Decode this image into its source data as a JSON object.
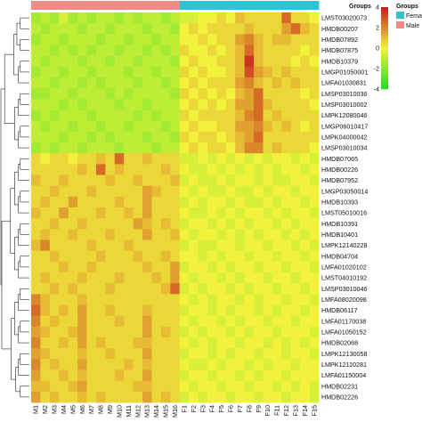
{
  "chart_data": {
    "type": "heatmap",
    "group_annotation": {
      "title": "Groups",
      "legend_title": "Groups",
      "entries": [
        {
          "label": "Femal",
          "color": "#2ec4cf"
        },
        {
          "label": "Male",
          "color": "#f08b86"
        }
      ]
    },
    "color_scale": {
      "ticks": [
        4,
        2,
        0,
        -2,
        -4
      ],
      "range": [
        -4,
        4
      ],
      "colors": {
        "low": "#22dd22",
        "mid": "#f2f23c",
        "high": "#c41a1a"
      }
    },
    "columns": [
      "M1",
      "M2",
      "M3",
      "M4",
      "M5",
      "M6",
      "M7",
      "M8",
      "M9",
      "M10",
      "M11",
      "M12",
      "M13",
      "M14",
      "M15",
      "M16",
      "F1",
      "F2",
      "F3",
      "F4",
      "F5",
      "F6",
      "F7",
      "F8",
      "F9",
      "F10",
      "F11",
      "F12",
      "F13",
      "F14",
      "F15"
    ],
    "column_groups": [
      "Male",
      "Male",
      "Male",
      "Male",
      "Male",
      "Male",
      "Male",
      "Male",
      "Male",
      "Male",
      "Male",
      "Male",
      "Male",
      "Male",
      "Male",
      "Male",
      "Femal",
      "Femal",
      "Femal",
      "Femal",
      "Femal",
      "Femal",
      "Femal",
      "Femal",
      "Femal",
      "Femal",
      "Femal",
      "Femal",
      "Femal",
      "Femal",
      "Femal"
    ],
    "rows": [
      "LMST03020073",
      "HMDB00207",
      "HMDB07892",
      "HMDB07875",
      "HMDB10379",
      "LMGP01050001",
      "LMFA01030831",
      "LMSP03010036",
      "LMSP03010002",
      "LMPK12080046",
      "LMGP06010417",
      "LMPK04000042",
      "LMSP03010034",
      "HMDB07065",
      "HMDB00226",
      "HMDB07952",
      "LMGP03050014",
      "HMDB10393",
      "LMST05010016",
      "HMDB10391",
      "HMDB10401",
      "LMPK12140228",
      "HMDB04704",
      "LMFA01020102",
      "LMST04010192",
      "LMSP03010046",
      "LMFA08020098",
      "HMDB06117",
      "LMFA01170038",
      "LMFA01050152",
      "HMDB02068",
      "LMPK12130058",
      "LMPK12110281",
      "LMFA01150004",
      "HMDB02231",
      "HMDB02226"
    ],
    "values": [
      [
        -1.5,
        -1.0,
        -1.5,
        -0.5,
        -1.5,
        -1.0,
        -1.5,
        -1.0,
        -1.0,
        -1.5,
        -1.0,
        -1.5,
        -1.0,
        -1.0,
        -1.5,
        -1.0,
        -0.5,
        -0.5,
        0.0,
        0.0,
        0.5,
        0.0,
        1.0,
        0.5,
        0.5,
        0.5,
        0.5,
        2.5,
        0.5,
        0.5,
        0.0
      ],
      [
        -1.0,
        -1.5,
        -1.0,
        -1.0,
        -1.0,
        -1.5,
        -1.0,
        -1.0,
        -1.5,
        -1.0,
        -1.0,
        -1.0,
        -1.5,
        -1.0,
        -1.0,
        -1.5,
        0.0,
        0.5,
        0.0,
        0.5,
        0.5,
        0.5,
        0.5,
        1.0,
        0.5,
        0.5,
        0.5,
        1.5,
        2.5,
        1.0,
        0.5
      ],
      [
        -1.5,
        -1.0,
        -1.0,
        -1.5,
        -1.0,
        -1.0,
        -1.0,
        -1.5,
        -1.0,
        -1.0,
        -1.5,
        -1.0,
        -1.0,
        -1.5,
        -1.0,
        -1.0,
        0.0,
        0.0,
        0.5,
        0.0,
        0.5,
        0.5,
        1.5,
        2.0,
        1.0,
        0.5,
        1.0,
        1.0,
        0.5,
        0.5,
        0.5
      ],
      [
        -1.0,
        -1.0,
        -1.5,
        -1.0,
        -1.5,
        -1.0,
        -1.5,
        -1.0,
        -1.0,
        -1.5,
        -1.0,
        -1.0,
        -1.5,
        -1.0,
        -1.5,
        -1.0,
        0.5,
        0.0,
        0.0,
        0.5,
        0.0,
        0.5,
        1.0,
        2.5,
        1.0,
        0.5,
        0.5,
        0.5,
        0.5,
        0.0,
        0.5
      ],
      [
        -1.0,
        -1.5,
        -1.0,
        -1.0,
        -1.0,
        -1.5,
        -1.0,
        -1.0,
        -1.5,
        -1.0,
        -1.0,
        -1.5,
        -1.0,
        -1.0,
        -1.0,
        -1.5,
        0.0,
        0.5,
        0.0,
        0.0,
        0.5,
        0.5,
        1.0,
        3.5,
        1.0,
        0.5,
        0.5,
        0.5,
        0.0,
        0.5,
        0.0
      ],
      [
        -1.5,
        -1.0,
        -1.0,
        -1.5,
        -1.0,
        -1.0,
        -1.5,
        -1.0,
        -1.0,
        -1.0,
        -1.5,
        -1.0,
        -1.0,
        -1.5,
        -1.0,
        -1.0,
        0.5,
        0.0,
        0.5,
        0.0,
        0.0,
        0.5,
        1.0,
        3.0,
        1.5,
        1.0,
        0.5,
        1.0,
        0.5,
        0.5,
        0.5
      ],
      [
        -1.0,
        -1.0,
        -1.5,
        -1.0,
        -1.0,
        -1.5,
        -1.0,
        -1.5,
        -1.0,
        -1.0,
        -1.0,
        -1.5,
        -1.0,
        -1.0,
        -1.5,
        -1.0,
        0.0,
        0.5,
        0.0,
        0.5,
        0.5,
        0.5,
        1.5,
        2.0,
        1.0,
        0.5,
        1.0,
        0.5,
        1.0,
        0.5,
        0.5
      ],
      [
        -1.5,
        -1.5,
        -1.0,
        -1.0,
        -1.5,
        -1.0,
        -1.0,
        -1.0,
        -1.5,
        -1.0,
        -1.5,
        -1.0,
        -1.0,
        -1.0,
        -1.0,
        -1.5,
        0.5,
        0.0,
        0.5,
        0.0,
        0.5,
        0.0,
        1.0,
        1.5,
        2.5,
        0.5,
        0.5,
        0.5,
        0.5,
        0.0,
        0.5
      ],
      [
        -1.0,
        -1.0,
        -1.0,
        -1.5,
        -1.0,
        -1.5,
        -1.0,
        -1.0,
        -1.0,
        -1.5,
        -1.0,
        -1.0,
        -1.5,
        -1.0,
        -1.0,
        -1.0,
        0.0,
        0.5,
        0.0,
        0.5,
        0.0,
        0.5,
        1.5,
        1.5,
        2.5,
        1.0,
        0.5,
        0.5,
        0.5,
        0.5,
        0.0
      ],
      [
        -1.5,
        -1.0,
        -1.5,
        -1.0,
        -1.0,
        -1.0,
        -1.5,
        -1.0,
        -1.0,
        -1.0,
        -1.0,
        -1.5,
        -1.0,
        -1.5,
        -1.0,
        -1.0,
        0.5,
        0.0,
        0.5,
        0.5,
        0.5,
        0.5,
        1.0,
        2.0,
        2.5,
        0.5,
        1.0,
        0.5,
        0.5,
        0.5,
        0.5
      ],
      [
        -1.0,
        -1.5,
        -1.0,
        -1.0,
        -1.5,
        -1.0,
        -1.0,
        -1.5,
        -1.0,
        -1.0,
        -1.5,
        -1.0,
        -1.0,
        -1.0,
        -1.5,
        -1.0,
        0.0,
        0.5,
        0.0,
        0.0,
        0.5,
        0.5,
        1.5,
        1.5,
        2.0,
        1.0,
        0.5,
        1.0,
        0.5,
        0.0,
        0.5
      ],
      [
        -1.0,
        -1.0,
        -1.0,
        -1.5,
        -1.0,
        -1.0,
        -1.5,
        -1.0,
        -1.5,
        -1.0,
        -1.0,
        -1.0,
        -1.5,
        -1.0,
        -1.0,
        -1.5,
        0.5,
        0.0,
        0.5,
        0.5,
        0.0,
        0.5,
        1.0,
        1.5,
        2.5,
        0.5,
        0.5,
        0.5,
        0.5,
        0.5,
        0.5
      ],
      [
        -1.5,
        -1.0,
        -1.5,
        -1.0,
        -1.0,
        -1.5,
        -1.0,
        -1.0,
        -1.0,
        -1.5,
        -1.0,
        -1.0,
        -1.0,
        -1.5,
        -1.0,
        -1.0,
        0.0,
        0.5,
        0.0,
        0.5,
        0.5,
        0.0,
        1.0,
        2.0,
        2.0,
        0.5,
        1.0,
        0.5,
        0.5,
        0.5,
        0.0
      ],
      [
        0.5,
        0.0,
        0.5,
        0.5,
        0.0,
        0.5,
        0.5,
        1.0,
        0.5,
        2.5,
        0.5,
        0.5,
        1.0,
        0.5,
        0.5,
        0.5,
        -0.5,
        -0.5,
        0.0,
        -0.5,
        0.0,
        -0.5,
        0.0,
        -0.5,
        0.0,
        -0.5,
        0.0,
        0.0,
        -0.5,
        0.0,
        -0.5
      ],
      [
        0.5,
        0.5,
        0.5,
        0.5,
        0.5,
        1.0,
        0.5,
        2.5,
        0.5,
        1.0,
        0.5,
        0.5,
        0.5,
        0.5,
        1.0,
        0.5,
        0.0,
        -0.5,
        -0.5,
        0.0,
        -0.5,
        0.0,
        -0.5,
        0.0,
        -0.5,
        0.0,
        -0.5,
        0.0,
        0.0,
        -0.5,
        0.0
      ],
      [
        1.0,
        0.5,
        0.5,
        1.0,
        0.5,
        0.5,
        0.5,
        0.5,
        1.0,
        0.5,
        0.5,
        1.0,
        0.5,
        0.5,
        0.5,
        1.0,
        -0.5,
        0.0,
        -0.5,
        -0.5,
        0.0,
        -0.5,
        0.0,
        0.0,
        -0.5,
        0.0,
        -0.5,
        -0.5,
        0.0,
        0.0,
        -0.5
      ],
      [
        0.5,
        0.5,
        1.0,
        0.5,
        0.5,
        0.5,
        1.0,
        0.5,
        0.5,
        0.5,
        0.5,
        0.5,
        1.5,
        1.0,
        0.5,
        0.5,
        0.0,
        -0.5,
        0.0,
        -0.5,
        -0.5,
        0.0,
        -0.5,
        -0.5,
        0.0,
        -0.5,
        0.0,
        0.0,
        -0.5,
        0.0,
        0.0
      ],
      [
        0.5,
        1.0,
        0.5,
        0.5,
        1.5,
        0.5,
        0.5,
        0.5,
        0.5,
        1.0,
        0.5,
        0.5,
        1.5,
        0.5,
        0.5,
        0.5,
        -0.5,
        0.0,
        -0.5,
        0.0,
        0.0,
        -0.5,
        0.0,
        -0.5,
        -0.5,
        0.0,
        -0.5,
        0.0,
        0.0,
        -0.5,
        0.0
      ],
      [
        1.0,
        0.5,
        0.5,
        1.5,
        0.5,
        0.5,
        0.5,
        1.0,
        0.5,
        0.5,
        1.0,
        0.5,
        1.5,
        0.5,
        0.5,
        0.5,
        0.0,
        -0.5,
        -0.5,
        0.0,
        -0.5,
        0.0,
        -0.5,
        0.0,
        0.0,
        -0.5,
        0.0,
        -0.5,
        0.0,
        0.0,
        -0.5
      ],
      [
        0.5,
        0.5,
        1.0,
        0.5,
        0.5,
        1.0,
        0.5,
        0.5,
        0.5,
        0.5,
        0.5,
        1.5,
        1.0,
        0.5,
        1.0,
        0.5,
        -0.5,
        0.0,
        0.0,
        -0.5,
        0.0,
        -0.5,
        0.0,
        -0.5,
        0.0,
        0.0,
        -0.5,
        0.0,
        -0.5,
        0.0,
        0.0
      ],
      [
        0.5,
        1.0,
        0.5,
        0.5,
        1.0,
        0.5,
        0.5,
        0.5,
        1.0,
        0.5,
        0.5,
        0.5,
        1.5,
        0.5,
        0.5,
        1.0,
        0.0,
        -0.5,
        0.0,
        0.0,
        -0.5,
        0.0,
        -0.5,
        0.0,
        -0.5,
        0.0,
        0.0,
        -0.5,
        0.0,
        -0.5,
        0.0
      ],
      [
        1.0,
        2.0,
        0.5,
        0.5,
        0.5,
        0.5,
        1.0,
        0.5,
        0.5,
        0.5,
        1.0,
        0.5,
        0.5,
        0.5,
        0.5,
        0.5,
        -0.5,
        0.0,
        -0.5,
        -0.5,
        0.0,
        0.0,
        -0.5,
        0.0,
        0.0,
        -0.5,
        0.0,
        0.0,
        -0.5,
        0.0,
        -0.5
      ],
      [
        0.5,
        0.5,
        1.0,
        0.5,
        0.5,
        0.5,
        0.5,
        1.0,
        0.5,
        0.5,
        0.5,
        1.0,
        0.5,
        0.5,
        1.0,
        0.5,
        0.0,
        0.0,
        -0.5,
        0.0,
        -0.5,
        0.0,
        0.0,
        -0.5,
        0.0,
        0.0,
        -0.5,
        0.0,
        0.0,
        -0.5,
        0.0
      ],
      [
        0.5,
        0.5,
        0.5,
        1.0,
        0.5,
        0.5,
        1.0,
        0.5,
        0.5,
        0.5,
        0.5,
        0.5,
        1.0,
        0.5,
        0.5,
        1.5,
        -0.5,
        0.0,
        0.0,
        -0.5,
        0.0,
        -0.5,
        0.0,
        0.0,
        -0.5,
        0.0,
        0.0,
        -0.5,
        0.0,
        0.0,
        -0.5
      ],
      [
        0.5,
        1.0,
        0.5,
        0.5,
        0.5,
        1.0,
        0.5,
        0.5,
        0.5,
        1.0,
        0.5,
        0.5,
        0.5,
        1.0,
        0.5,
        1.5,
        0.0,
        -0.5,
        0.0,
        0.0,
        -0.5,
        0.0,
        -0.5,
        0.0,
        0.0,
        -0.5,
        0.0,
        0.0,
        -0.5,
        0.0,
        0.0
      ],
      [
        0.5,
        0.5,
        1.0,
        0.5,
        1.0,
        0.5,
        0.5,
        0.5,
        1.0,
        0.5,
        0.5,
        0.5,
        0.5,
        0.5,
        1.0,
        2.5,
        -0.5,
        0.0,
        -0.5,
        0.0,
        0.0,
        -0.5,
        0.0,
        -0.5,
        0.0,
        0.0,
        -0.5,
        0.0,
        0.0,
        -0.5,
        0.0
      ],
      [
        2.0,
        1.0,
        0.5,
        0.5,
        0.5,
        1.0,
        0.5,
        0.5,
        0.5,
        0.5,
        0.5,
        0.5,
        0.5,
        0.5,
        0.5,
        0.5,
        0.0,
        -0.5,
        0.0,
        -0.5,
        0.0,
        0.0,
        -0.5,
        0.0,
        -0.5,
        0.0,
        0.0,
        -0.5,
        0.0,
        0.0,
        -0.5
      ],
      [
        2.5,
        1.0,
        0.5,
        1.0,
        0.5,
        1.5,
        0.5,
        0.5,
        1.0,
        0.5,
        0.5,
        0.5,
        1.0,
        0.5,
        0.5,
        0.5,
        -0.5,
        0.0,
        0.0,
        -0.5,
        0.0,
        -0.5,
        0.0,
        0.0,
        -0.5,
        0.0,
        -0.5,
        0.0,
        0.0,
        -0.5,
        0.0
      ],
      [
        2.0,
        0.5,
        1.0,
        0.5,
        0.5,
        1.5,
        0.5,
        0.5,
        0.5,
        1.0,
        0.5,
        0.5,
        1.5,
        0.5,
        0.5,
        0.5,
        0.0,
        -0.5,
        0.0,
        0.0,
        -0.5,
        0.0,
        -0.5,
        0.0,
        0.0,
        -0.5,
        0.0,
        0.0,
        -0.5,
        0.0,
        0.0
      ],
      [
        1.5,
        1.0,
        0.5,
        0.5,
        1.0,
        1.5,
        0.5,
        0.5,
        0.5,
        0.5,
        0.5,
        0.5,
        1.5,
        0.5,
        1.0,
        0.5,
        -0.5,
        0.0,
        -0.5,
        0.0,
        0.0,
        -0.5,
        0.0,
        -0.5,
        0.0,
        0.0,
        -0.5,
        0.0,
        0.0,
        0.0,
        -0.5
      ],
      [
        2.0,
        0.5,
        0.5,
        1.0,
        0.5,
        1.5,
        0.5,
        1.0,
        0.5,
        0.5,
        0.5,
        1.0,
        1.0,
        0.5,
        0.5,
        0.5,
        0.0,
        -0.5,
        0.0,
        -0.5,
        0.0,
        0.0,
        -0.5,
        0.0,
        0.0,
        -0.5,
        0.0,
        -0.5,
        0.0,
        -0.5,
        0.0
      ],
      [
        1.5,
        1.0,
        0.5,
        0.5,
        0.5,
        1.0,
        0.5,
        0.5,
        1.0,
        0.5,
        0.5,
        0.5,
        1.5,
        0.5,
        0.5,
        0.5,
        -0.5,
        0.0,
        0.0,
        -0.5,
        0.0,
        -0.5,
        0.0,
        0.0,
        -0.5,
        0.0,
        0.0,
        -0.5,
        0.0,
        0.0,
        -0.5
      ],
      [
        2.0,
        0.5,
        1.0,
        0.5,
        0.5,
        1.5,
        0.5,
        0.5,
        0.5,
        0.5,
        1.0,
        0.5,
        1.0,
        0.5,
        0.5,
        0.5,
        0.0,
        -0.5,
        -0.5,
        0.0,
        -0.5,
        0.0,
        0.0,
        -0.5,
        0.0,
        -0.5,
        0.0,
        0.0,
        -0.5,
        0.0,
        0.0
      ],
      [
        1.5,
        0.5,
        0.5,
        1.0,
        0.5,
        1.0,
        0.5,
        0.5,
        0.5,
        1.0,
        0.5,
        0.5,
        1.5,
        0.5,
        0.5,
        0.5,
        -0.5,
        0.0,
        0.0,
        -0.5,
        0.0,
        0.0,
        -0.5,
        0.0,
        -0.5,
        0.0,
        0.0,
        -0.5,
        0.0,
        0.0,
        0.0
      ],
      [
        1.0,
        1.0,
        0.5,
        0.5,
        1.0,
        1.5,
        0.5,
        0.5,
        0.5,
        0.5,
        0.5,
        1.0,
        1.0,
        0.5,
        0.5,
        0.5,
        0.0,
        -0.5,
        0.0,
        0.0,
        -0.5,
        0.0,
        0.0,
        -0.5,
        0.0,
        0.0,
        -0.5,
        0.0,
        -0.5,
        0.0,
        -0.5
      ],
      [
        1.5,
        0.5,
        1.0,
        0.5,
        0.5,
        1.0,
        0.5,
        1.0,
        0.5,
        0.5,
        0.5,
        0.5,
        1.5,
        0.5,
        1.0,
        0.5,
        -0.5,
        0.0,
        -0.5,
        0.0,
        0.0,
        -0.5,
        0.0,
        0.0,
        -0.5,
        0.0,
        0.0,
        -0.5,
        0.0,
        0.0,
        -0.5
      ]
    ]
  }
}
